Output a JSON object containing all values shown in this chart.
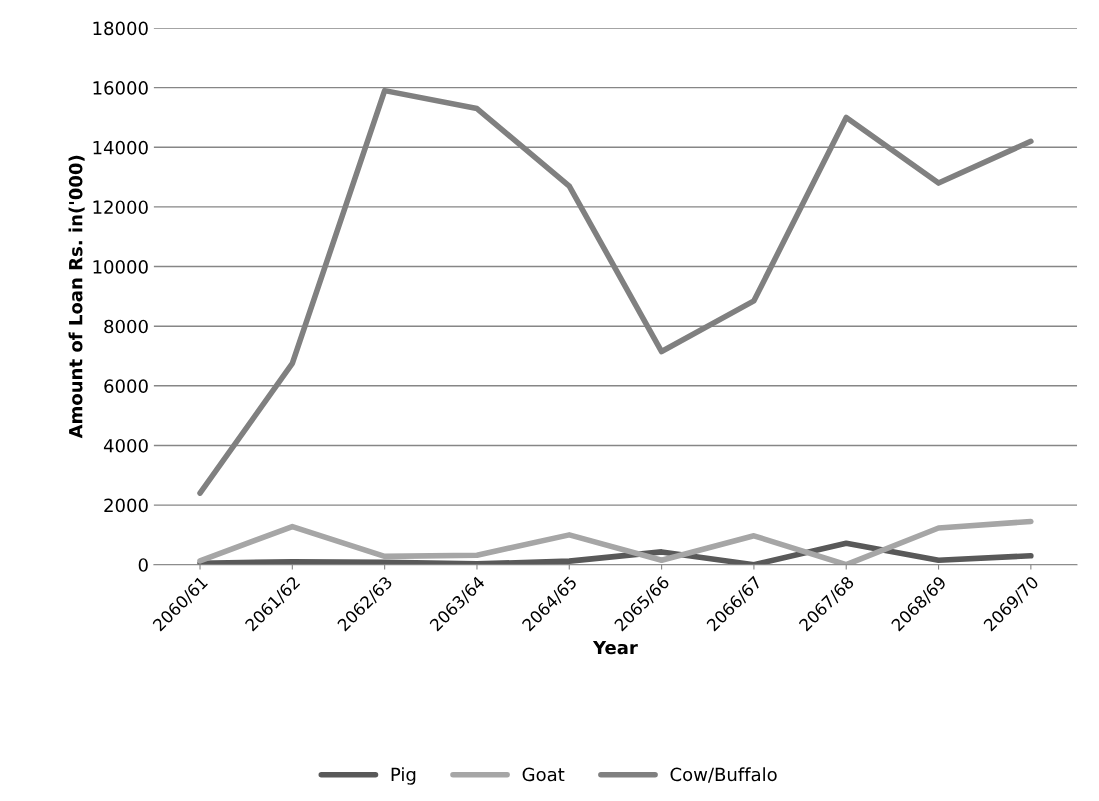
{
  "chart_data": {
    "type": "line",
    "xlabel": "Year",
    "ylabel": "Amount of Loan Rs. in('000)",
    "categories": [
      "2060/61",
      "2061/62",
      "2062/63",
      "2063/64",
      "2064/65",
      "2065/66",
      "2066/67",
      "2067/68",
      "2068/69",
      "2069/70"
    ],
    "series": [
      {
        "name": "Pig",
        "color": "#595959",
        "values": [
          50,
          100,
          80,
          30,
          120,
          430,
          0,
          720,
          150,
          300
        ]
      },
      {
        "name": "Goat",
        "color": "#a6a6a6",
        "values": [
          130,
          1280,
          280,
          320,
          1000,
          150,
          970,
          0,
          1230,
          1450
        ]
      },
      {
        "name": "Cow/Buffalo",
        "color": "#808080",
        "values": [
          2400,
          6750,
          15900,
          15300,
          12700,
          7150,
          8850,
          15000,
          12800,
          14200
        ]
      }
    ],
    "ylim": [
      0,
      18000
    ],
    "yticks": [
      0,
      2000,
      4000,
      6000,
      8000,
      10000,
      12000,
      14000,
      16000,
      18000
    ],
    "grid": "y",
    "legend": "bottom",
    "marker": "none",
    "line_style": "solid"
  }
}
